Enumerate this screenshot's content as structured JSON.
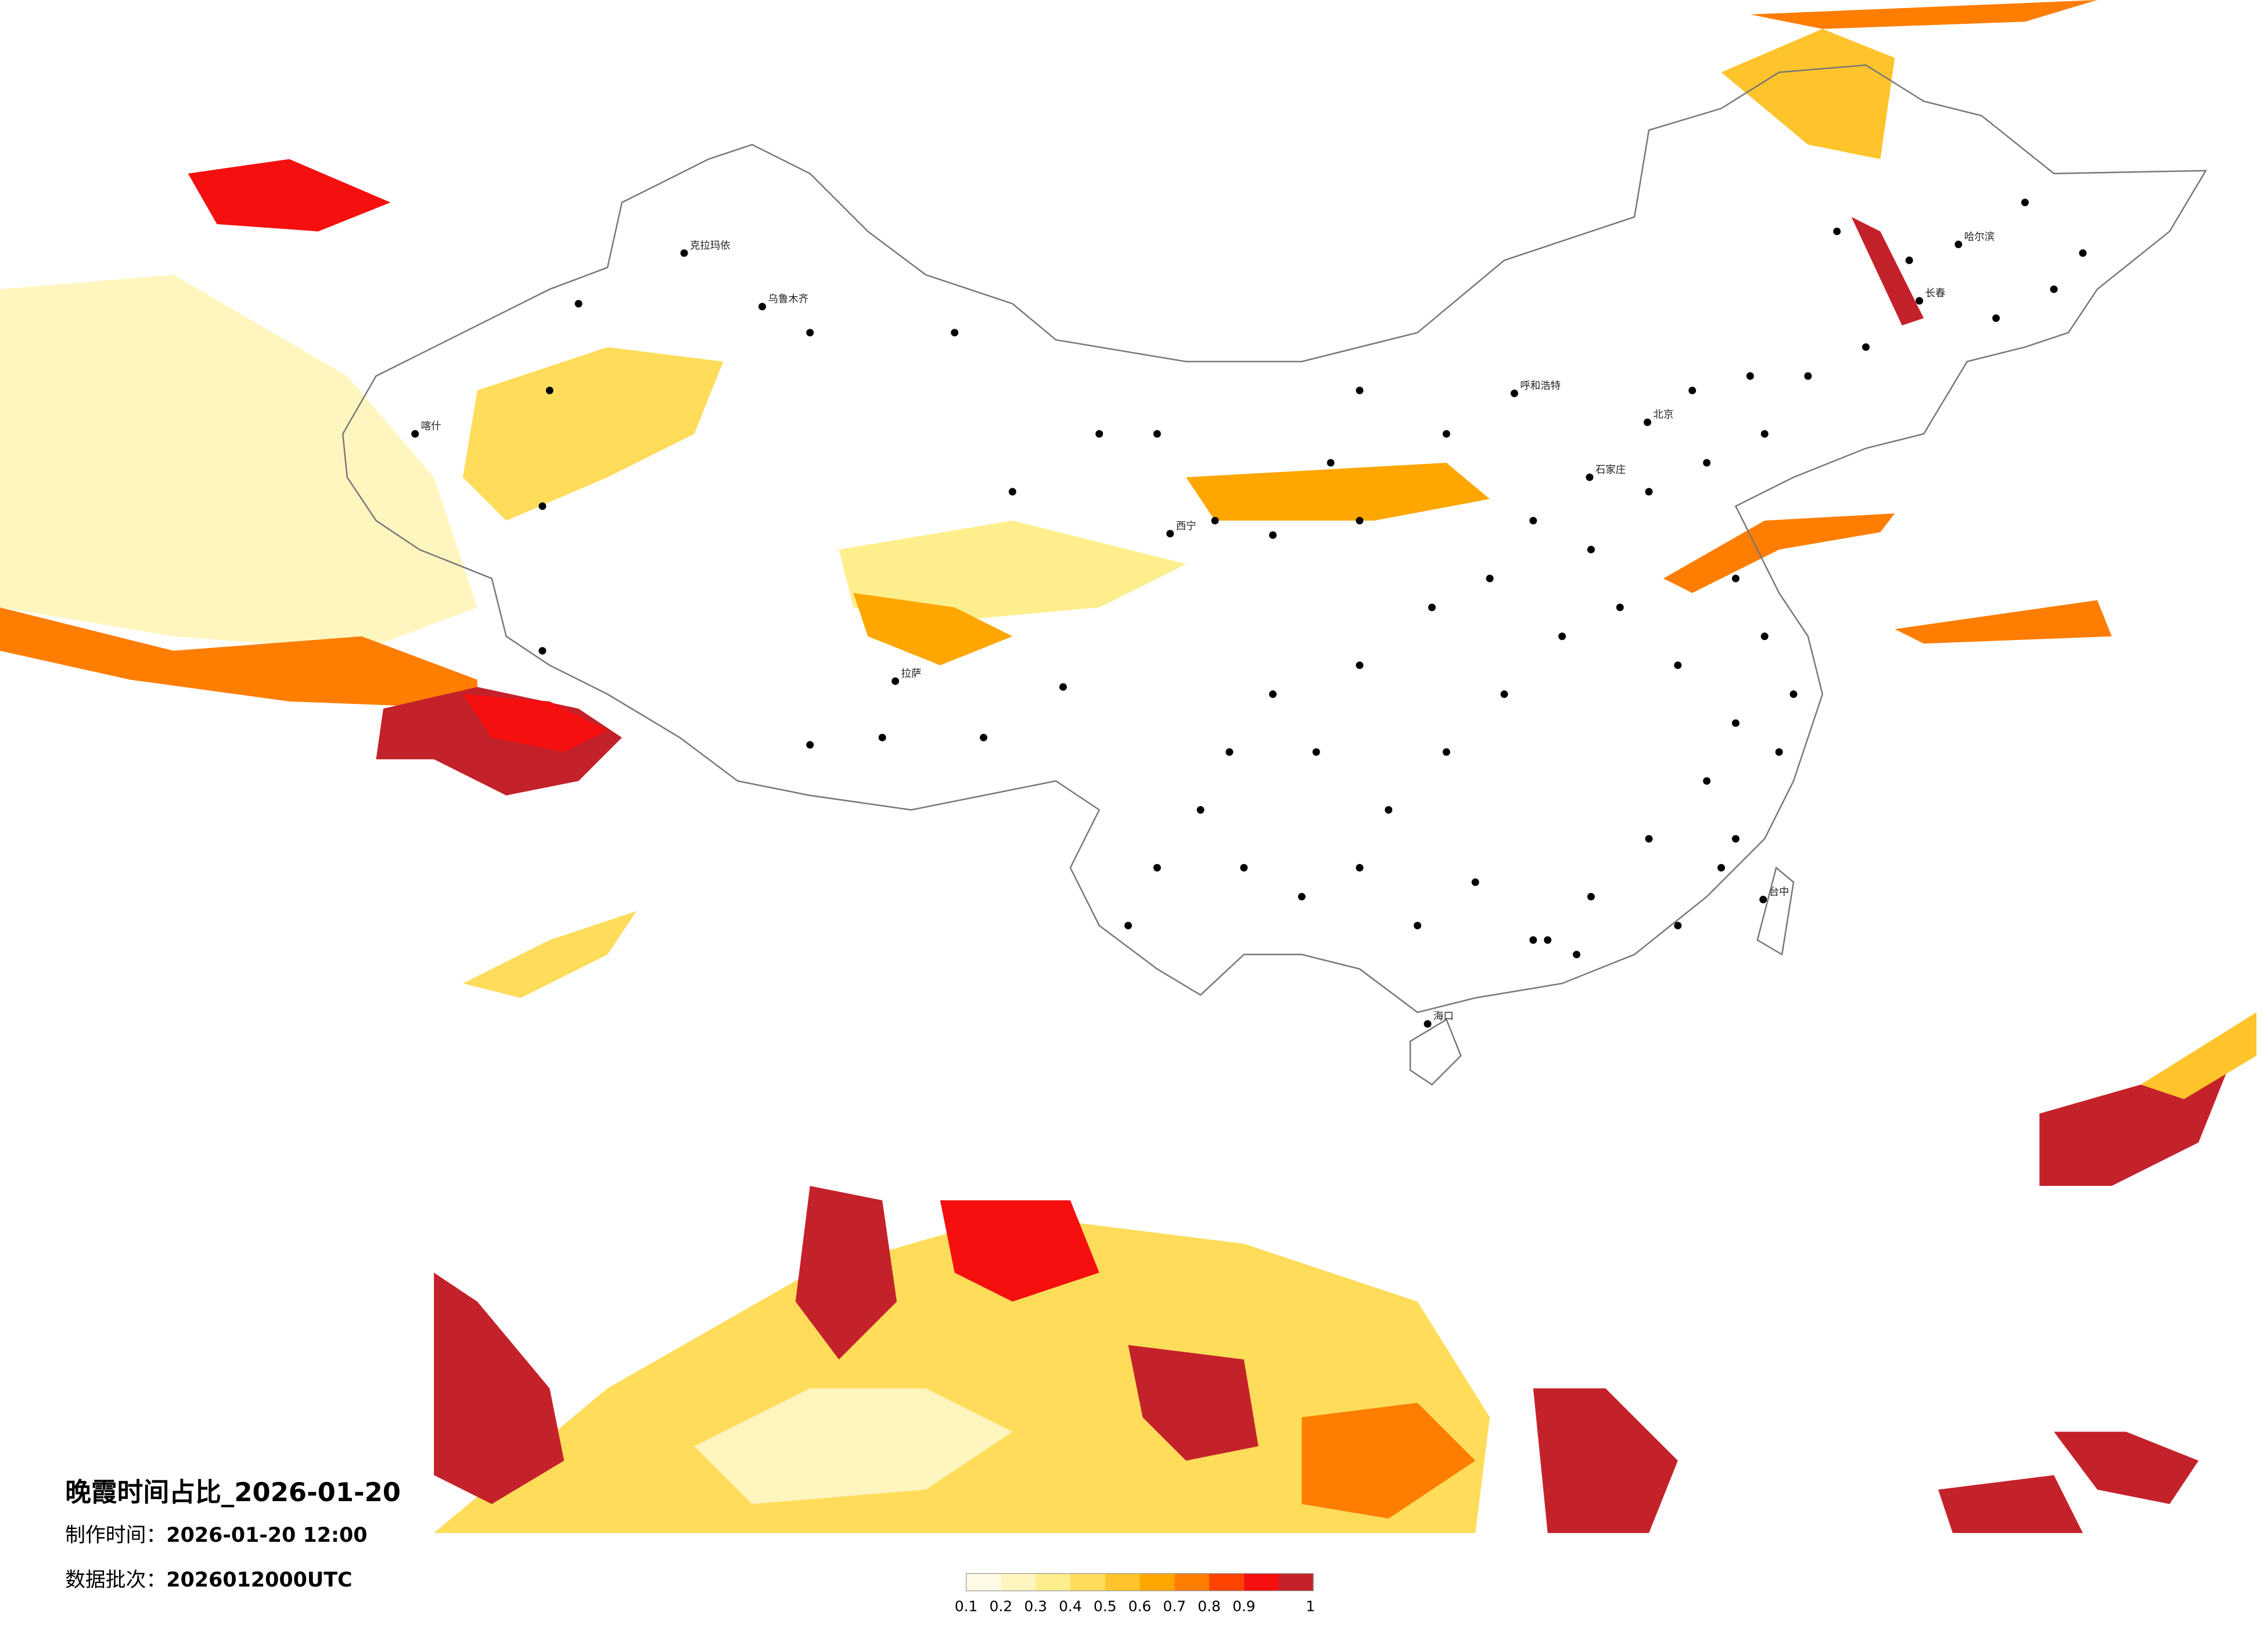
{
  "title": "晚霞时间占比_2026-01-20",
  "produced": {
    "label": "制作时间：",
    "value": "2026-01-20 12:00"
  },
  "batch": {
    "label": "数据批次：",
    "value": "2026012000UTC"
  },
  "colorbar": {
    "colors": [
      "#fffbe6",
      "#fff6bf",
      "#ffee8c",
      "#ffdc5a",
      "#ffc42c",
      "#ffa600",
      "#ff7d00",
      "#ff4400",
      "#f50f0f",
      "#c4222a"
    ],
    "ticks": [
      0.1,
      0.2,
      0.3,
      0.4,
      0.5,
      0.6,
      0.7,
      0.8,
      0.9,
      1
    ]
  },
  "cities": [
    "乌鲁木齐",
    "克拉玛依",
    "拉萨",
    "西宁",
    "北京",
    "石家庄",
    "哈尔滨",
    "长春",
    "海口",
    "台中",
    "喀什",
    "呼和浩特"
  ]
}
